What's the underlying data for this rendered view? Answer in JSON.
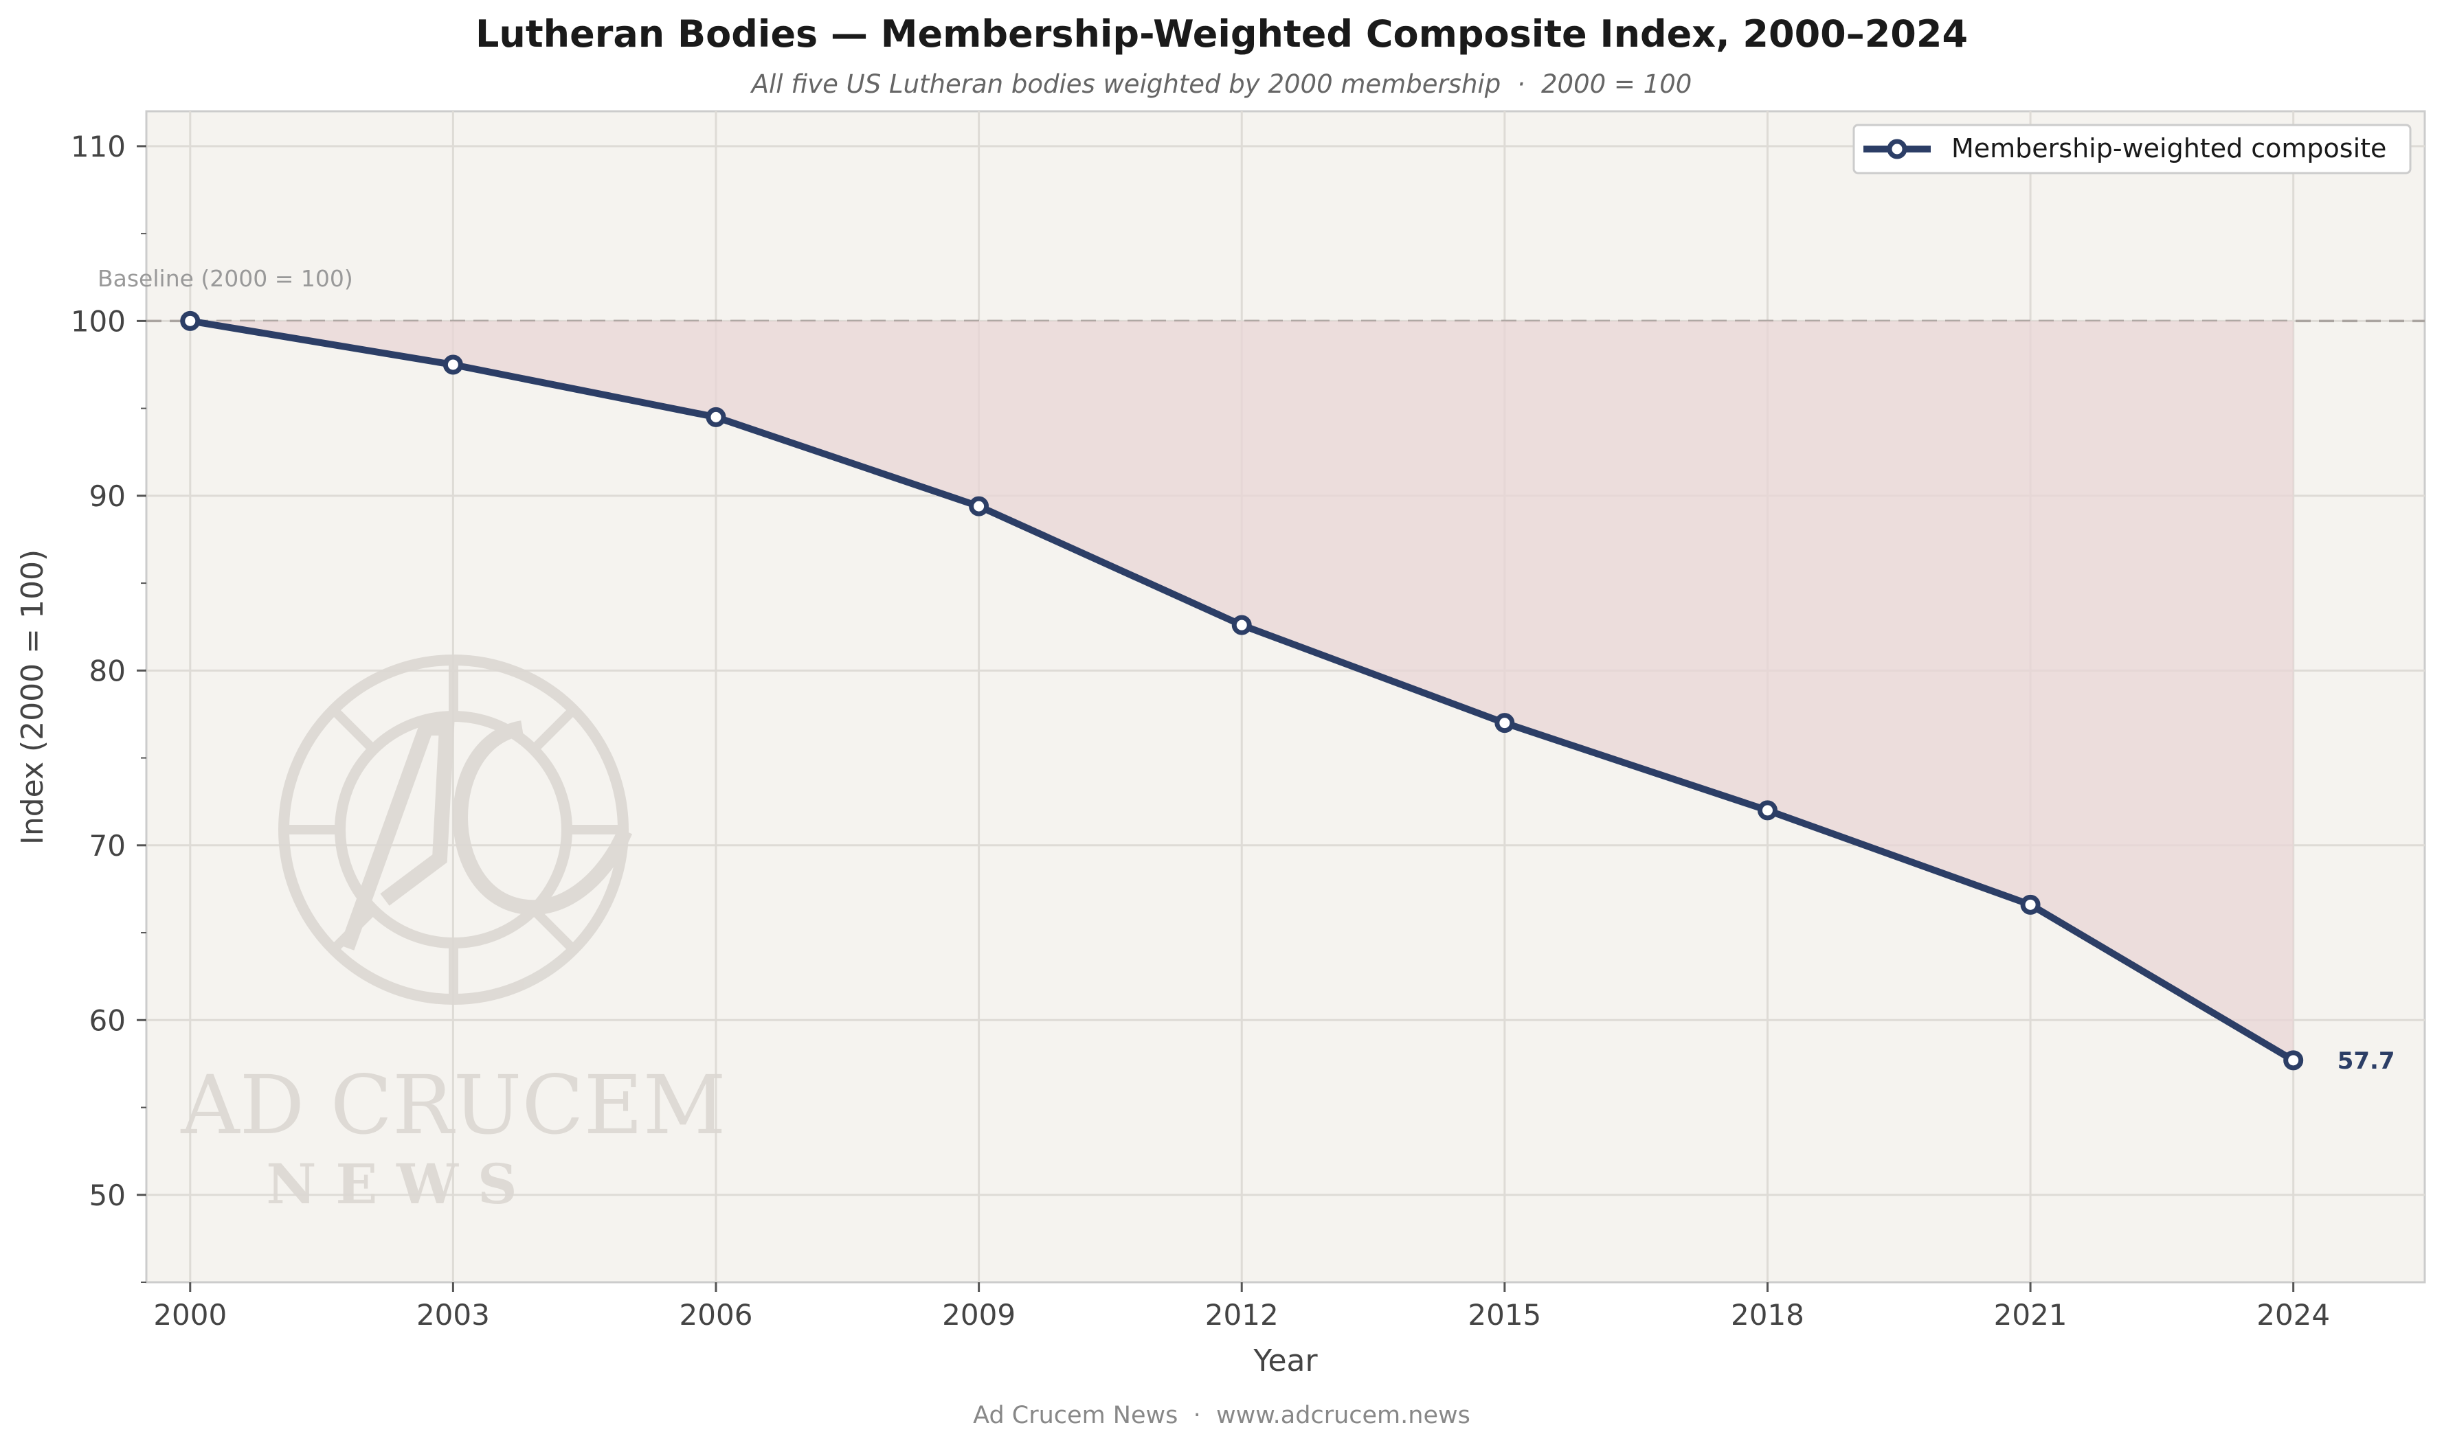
{
  "chart_data": {
    "type": "line",
    "title": "Lutheran Bodies — Membership-Weighted Composite Index, 2000–2024",
    "subtitle": "All five US Lutheran bodies weighted by 2000 membership  ·  2000 = 100",
    "xlabel": "Year",
    "ylabel": "Index (2000 = 100)",
    "x": [
      2000,
      2003,
      2006,
      2009,
      2012,
      2015,
      2018,
      2021,
      2024
    ],
    "xticks": [
      "2000",
      "2003",
      "2006",
      "2009",
      "2012",
      "2015",
      "2018",
      "2021",
      "2024"
    ],
    "xlim": [
      1999.5,
      2025.5
    ],
    "ylim": [
      45,
      112
    ],
    "yticks": [
      50,
      60,
      70,
      80,
      90,
      100,
      110
    ],
    "grid": true,
    "legend_position": "top-right",
    "series": [
      {
        "name": "Membership-weighted composite",
        "values": [
          100,
          97.5,
          94.5,
          89.4,
          82.6,
          77.0,
          72.0,
          66.6,
          57.7
        ],
        "color": "#2c3e66"
      }
    ],
    "baseline": {
      "value": 100,
      "label": "Baseline (2000 = 100)"
    },
    "end_label": "57.7",
    "fill_color": "#e8d5d5",
    "plot_background": "#f5f3ef"
  },
  "watermark": {
    "line1": "AD CRUCEM",
    "line2": "N E W S"
  },
  "footer": "Ad Crucem News  ·  www.adcrucem.news"
}
